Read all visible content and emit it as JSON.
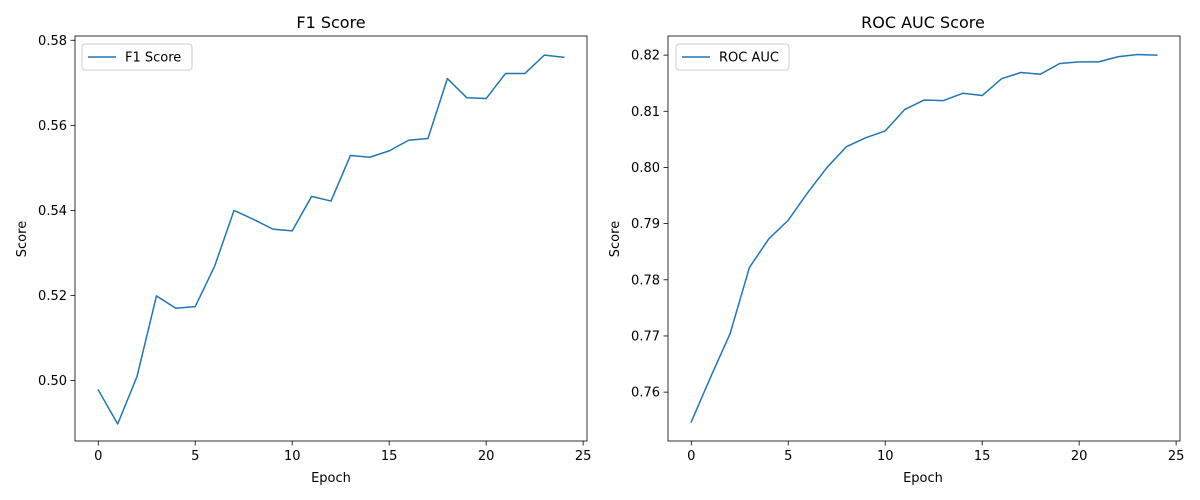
{
  "chart_data": [
    {
      "type": "line",
      "title": "F1 Score",
      "xlabel": "Epoch",
      "ylabel": "Score",
      "xlim": [
        -1.2,
        25.2
      ],
      "ylim": [
        0.4858,
        0.581
      ],
      "xticks": [
        0,
        5,
        10,
        15,
        20,
        25
      ],
      "yticks": [
        0.5,
        0.52,
        0.54,
        0.56,
        0.58
      ],
      "ytick_labels": [
        "0.50",
        "0.52",
        "0.54",
        "0.56",
        "0.58"
      ],
      "grid": false,
      "legend_position": "upper left",
      "color": "#1f77b4",
      "series": [
        {
          "name": "F1 Score",
          "x": [
            0,
            1,
            2,
            3,
            4,
            5,
            6,
            7,
            8,
            9,
            10,
            11,
            12,
            13,
            14,
            15,
            16,
            17,
            18,
            19,
            20,
            21,
            22,
            23,
            24
          ],
          "values": [
            0.4978,
            0.4898,
            0.501,
            0.5199,
            0.517,
            0.5174,
            0.5269,
            0.54,
            0.5379,
            0.5356,
            0.5352,
            0.5433,
            0.5422,
            0.5529,
            0.5525,
            0.554,
            0.5565,
            0.5569,
            0.571,
            0.5665,
            0.5663,
            0.5722,
            0.5722,
            0.5765,
            0.576
          ]
        }
      ]
    },
    {
      "type": "line",
      "title": "ROC AUC Score",
      "xlabel": "Epoch",
      "ylabel": "Score",
      "xlim": [
        -1.2,
        25.2
      ],
      "ylim": [
        0.7513,
        0.8234
      ],
      "xticks": [
        0,
        5,
        10,
        15,
        20,
        25
      ],
      "yticks": [
        0.76,
        0.77,
        0.78,
        0.79,
        0.8,
        0.81,
        0.82
      ],
      "ytick_labels": [
        "0.76",
        "0.77",
        "0.78",
        "0.79",
        "0.80",
        "0.81",
        "0.82"
      ],
      "grid": false,
      "legend_position": "upper left",
      "color": "#1f77b4",
      "series": [
        {
          "name": "ROC AUC",
          "x": [
            0,
            1,
            2,
            3,
            4,
            5,
            6,
            7,
            8,
            9,
            10,
            11,
            12,
            13,
            14,
            15,
            16,
            17,
            18,
            19,
            20,
            21,
            22,
            23,
            24
          ],
          "values": [
            0.7547,
            0.7627,
            0.7704,
            0.7822,
            0.7873,
            0.7906,
            0.7955,
            0.8,
            0.8037,
            0.8053,
            0.8065,
            0.8103,
            0.812,
            0.8119,
            0.8132,
            0.8128,
            0.8158,
            0.8169,
            0.8166,
            0.8185,
            0.8188,
            0.8188,
            0.8197,
            0.8201,
            0.82
          ]
        }
      ]
    }
  ]
}
